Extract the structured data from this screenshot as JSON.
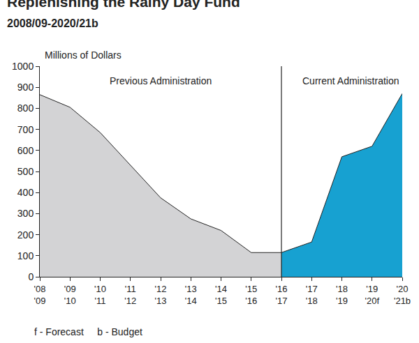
{
  "chart_data": {
    "type": "area",
    "title": "Replenishing the Rainy Day Fund",
    "subtitle": "2008/09-2020/21b",
    "y_label": "Millions of Dollars",
    "categories": [
      "'08\n'09",
      "'09\n'10",
      "'10\n'11",
      "'11\n'12",
      "'12\n'13",
      "'13\n'14",
      "'14\n'15",
      "'15\n'16",
      "'16\n'17",
      "'17\n'18",
      "'18\n'19",
      "'19\n'20f",
      "'20\n'21b"
    ],
    "series": [
      {
        "name": "Previous Administration",
        "color": "#d3d3d5",
        "values": [
          865,
          805,
          685,
          530,
          375,
          275,
          220,
          115,
          115,
          null,
          null,
          null,
          null
        ]
      },
      {
        "name": "Current Administration",
        "color": "#17a1d1",
        "values": [
          null,
          null,
          null,
          null,
          null,
          null,
          null,
          null,
          115,
          165,
          570,
          620,
          870
        ]
      }
    ],
    "ylim": [
      0,
      1000
    ],
    "yticks": [
      0,
      100,
      200,
      300,
      400,
      500,
      600,
      700,
      800,
      900,
      1000
    ],
    "grid": false,
    "notes": [
      "f - Forecast",
      "b - Budget"
    ]
  }
}
